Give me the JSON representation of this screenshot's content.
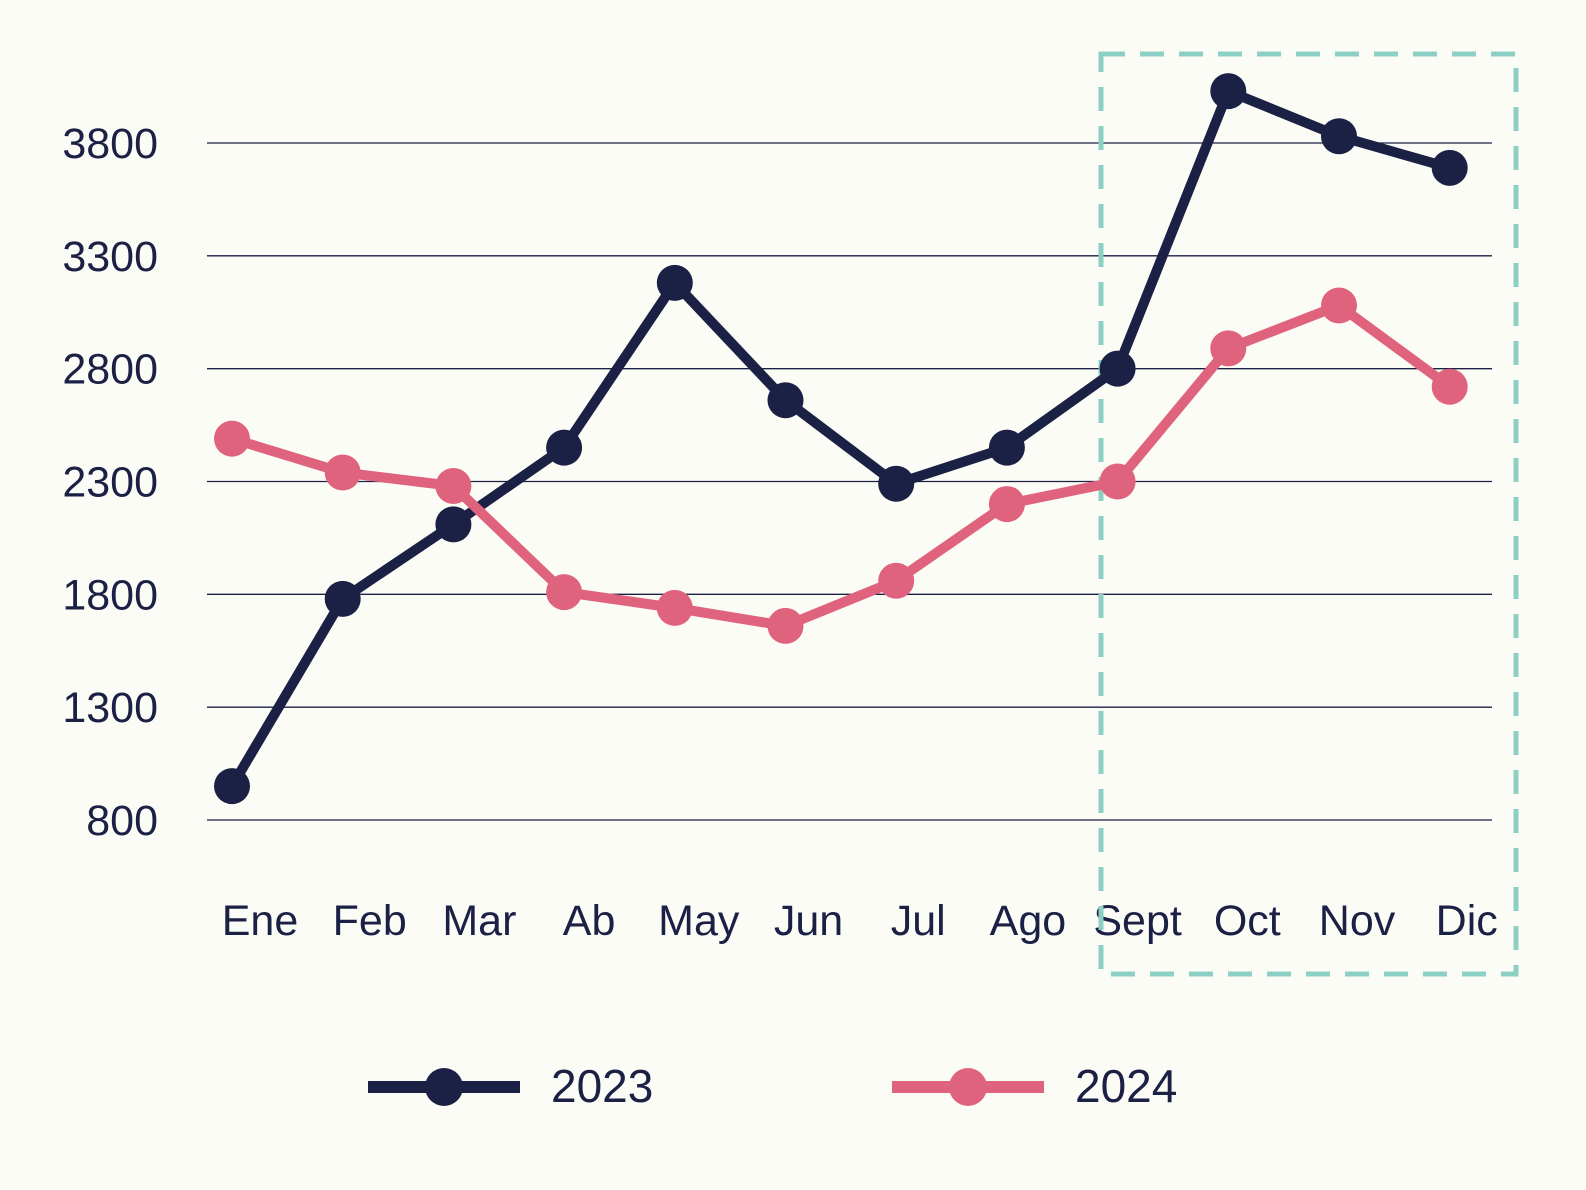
{
  "chart_data": {
    "type": "line",
    "title": "",
    "xlabel": "",
    "ylabel": "",
    "categories": [
      "Ene",
      "Feb",
      "Mar",
      "Ab",
      "May",
      "Jun",
      "Jul",
      "Ago",
      "Sept",
      "Oct",
      "Nov",
      "Dic"
    ],
    "yticks": [
      "800",
      "1300",
      "1800",
      "2300",
      "2800",
      "3300",
      "3800"
    ],
    "ylim": [
      800,
      3800
    ],
    "grid": "horizontal",
    "legend_position": "bottom",
    "highlight": {
      "from": "Sept",
      "to": "Dic",
      "style": "dashed-box",
      "color": "#8ccfc4"
    },
    "series": [
      {
        "name": "2023",
        "color": "#1b2045",
        "values": [
          950,
          1780,
          2110,
          2450,
          3180,
          2660,
          2290,
          2450,
          2800,
          4030,
          3830,
          3690
        ]
      },
      {
        "name": "2024",
        "color": "#e0637e",
        "values": [
          2490,
          2340,
          2280,
          1810,
          1740,
          1660,
          1860,
          2200,
          2300,
          2890,
          3080,
          2720
        ]
      }
    ]
  }
}
